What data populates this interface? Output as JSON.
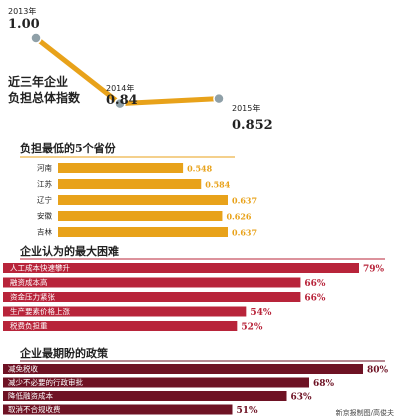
{
  "colors": {
    "gold": "#e8a21a",
    "red": "#b8243a",
    "maroon": "#6e1224",
    "marker": "#8fa0a8",
    "text": "#222222",
    "value_gold": "#e8a21a",
    "value_red": "#b8243a",
    "value_maroon": "#6e1224"
  },
  "chart_data": [
    {
      "type": "line",
      "title": "近三年企业负担总体指数",
      "title_lines": [
        "近三年企业",
        "负担总体指数"
      ],
      "points": [
        {
          "year": "2013年",
          "value": 1.0,
          "label": "1.00"
        },
        {
          "year": "2014年",
          "value": 0.84,
          "label": "0.84"
        },
        {
          "year": "2015年",
          "value": 0.852,
          "label": "0.852"
        }
      ]
    },
    {
      "type": "bar",
      "title": "负担最低的5个省份",
      "categories": [
        "河南",
        "江苏",
        "辽宁",
        "安徽",
        "吉林"
      ],
      "values": [
        0.548,
        0.584,
        0.637,
        0.626,
        0.637
      ],
      "labels": [
        "0.548",
        "0.584",
        "0.637",
        "0.626",
        "0.637"
      ]
    },
    {
      "type": "bar",
      "title": "企业认为的最大困难",
      "categories": [
        "人工成本快速攀升",
        "融资成本高",
        "资金压力紧张",
        "生产要素价格上涨",
        "税费负担重"
      ],
      "values": [
        79,
        66,
        66,
        54,
        52
      ],
      "labels": [
        "79%",
        "66%",
        "66%",
        "54%",
        "52%"
      ]
    },
    {
      "type": "bar",
      "title": "企业最期盼的政策",
      "categories": [
        "减免税收",
        "减少不必要的行政审批",
        "降低融资成本",
        "取消不合规收费"
      ],
      "values": [
        80,
        68,
        63,
        51
      ],
      "labels": [
        "80%",
        "68%",
        "63%",
        "51%"
      ]
    }
  ],
  "credit": "新京报制图/高俊夫"
}
